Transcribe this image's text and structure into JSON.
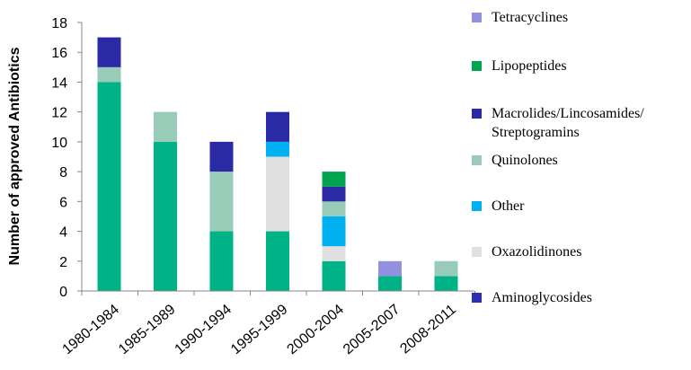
{
  "chart_data": {
    "type": "bar",
    "stacked": true,
    "title": "",
    "xlabel": "",
    "ylabel": "Number of approved Antibiotics",
    "ylim": [
      0,
      18
    ],
    "yticks": [
      0,
      2,
      4,
      6,
      8,
      10,
      12,
      14,
      16,
      18
    ],
    "grid": false,
    "legend_position": "right",
    "categories": [
      "1980-1984",
      "1985-1989",
      "1990-1994",
      "1995-1999",
      "2000-2004",
      "2005-2007",
      "2008-2011"
    ],
    "series": [
      {
        "name": "Aminoglycosides",
        "color": "#2f2fb3",
        "values": [
          0,
          0,
          0,
          0,
          0,
          0,
          0
        ]
      },
      {
        "name": "",
        "color": "#00b386",
        "values": [
          14,
          10,
          4,
          4,
          2,
          1,
          1
        ]
      },
      {
        "name": "Oxazolidinones",
        "color": "#e0e0e0",
        "values": [
          0,
          0,
          0,
          5,
          1,
          0,
          0
        ]
      },
      {
        "name": "Other",
        "color": "#00b0f0",
        "values": [
          0,
          0,
          0,
          1,
          2,
          0,
          0
        ]
      },
      {
        "name": "Quinolones",
        "color": "#99ccb8",
        "values": [
          1,
          2,
          4,
          0,
          1,
          0,
          1
        ]
      },
      {
        "name": "Macrolides/Lincosamides/ Streptogramins",
        "color": "#2a2aa6",
        "values": [
          2,
          0,
          2,
          2,
          1,
          0,
          0
        ]
      },
      {
        "name": "Lipopeptides",
        "color": "#00a550",
        "values": [
          0,
          0,
          0,
          0,
          1,
          0,
          0
        ]
      },
      {
        "name": "Tetracyclines",
        "color": "#9490e0",
        "values": [
          0,
          0,
          0,
          0,
          0,
          1,
          0
        ]
      }
    ],
    "stack_order": [
      1,
      2,
      3,
      4,
      5,
      6,
      7
    ],
    "legend": [
      {
        "label": "Tetracyclines",
        "color": "#9490e0"
      },
      {
        "label": "Lipopeptides",
        "color": "#00a550"
      },
      {
        "label": "Macrolides/Lincosamides/",
        "label2": "Streptogramins",
        "color": "#2a2aa6"
      },
      {
        "label": "Quinolones",
        "color": "#99ccb8"
      },
      {
        "label": "Other",
        "color": "#00b0f0"
      },
      {
        "label": "Oxazolidinones",
        "color": "#e0e0e0"
      },
      {
        "label": "Aminoglycosides",
        "color": "#2f2fb3"
      }
    ]
  }
}
